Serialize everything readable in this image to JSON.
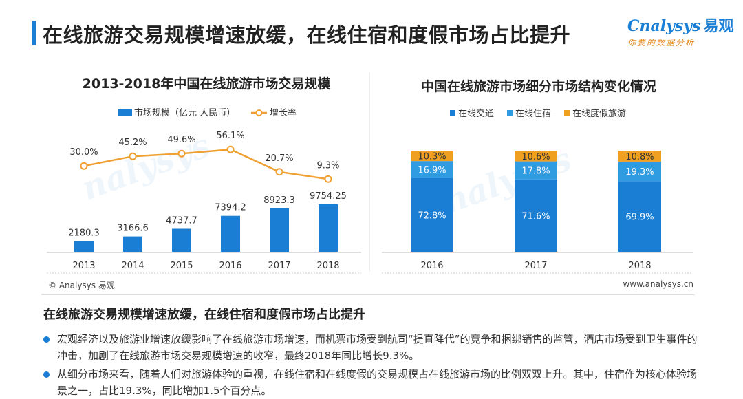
{
  "header": {
    "title": "在线旅游交易规模增速放缓，在线住宿和度假市场占比提升",
    "logo_text": "nalysys",
    "logo_cn": "易观",
    "logo_slogan": "你要的数据分析"
  },
  "chart_data": [
    {
      "type": "bar",
      "title": "2013-2018年中国在线旅游市场交易规模",
      "categories": [
        "2013",
        "2014",
        "2015",
        "2016",
        "2017",
        "2018"
      ],
      "series": [
        {
          "name": "市场规模（亿元 人民币）",
          "values": [
            2180.3,
            3166.6,
            4737.7,
            7394.2,
            8923.3,
            9754.25
          ],
          "color": "#1a7fd4"
        },
        {
          "name": "增长率",
          "values": [
            30.0,
            45.2,
            49.6,
            56.1,
            20.7,
            9.3
          ],
          "type": "line",
          "color": "#f0a030",
          "unit": "%"
        }
      ],
      "value_labels": [
        "2180.3",
        "3166.6",
        "4737.7",
        "7394.2",
        "8923.3",
        "9754.25"
      ],
      "rate_labels": [
        "30.0%",
        "45.2%",
        "49.6%",
        "56.1%",
        "20.7%",
        "9.3%"
      ],
      "legend_position": "top",
      "grid": false
    },
    {
      "type": "stacked-bar",
      "title": "中国在线旅游市场细分市场结构变化情况",
      "categories": [
        "2016",
        "2017",
        "2018"
      ],
      "series": [
        {
          "name": "在线交通",
          "values": [
            72.8,
            71.6,
            69.9
          ],
          "labels": [
            "72.8%",
            "71.6%",
            "69.9%"
          ],
          "color": "#1a7fd4"
        },
        {
          "name": "在线住宿",
          "values": [
            16.9,
            17.8,
            19.3
          ],
          "labels": [
            "16.9%",
            "17.8%",
            "19.3%"
          ],
          "color": "#2f9be0"
        },
        {
          "name": "在线度假旅游",
          "values": [
            10.3,
            10.6,
            10.8
          ],
          "labels": [
            "10.3%",
            "10.6%",
            "10.8%"
          ],
          "color": "#f0a020"
        }
      ],
      "legend_position": "top",
      "grid": false
    }
  ],
  "footer": {
    "copyright": "© Analysys 易观",
    "website": "www.analysys.cn"
  },
  "summary": {
    "title": "在线旅游交易规模增速放缓，在线住宿和度假市场占比提升",
    "bullets": [
      "宏观经济以及旅游业增速放缓影响了在线旅游市场增速，而机票市场受到航司“提直降代”的竞争和捆绑销售的监管，酒店市场受到卫生事件的冲击，加剧了在线旅游市场交易规模增速的收窄，最终2018年同比增长9.3%。",
      "从细分市场来看，随着人们对旅游体验的重视，在线住宿和在线度假的交易规模占在线旅游市场的比例双双上升。其中，住宿作为核心体验场景之一，占比19.3%，同比增加1.5个百分点。"
    ]
  }
}
